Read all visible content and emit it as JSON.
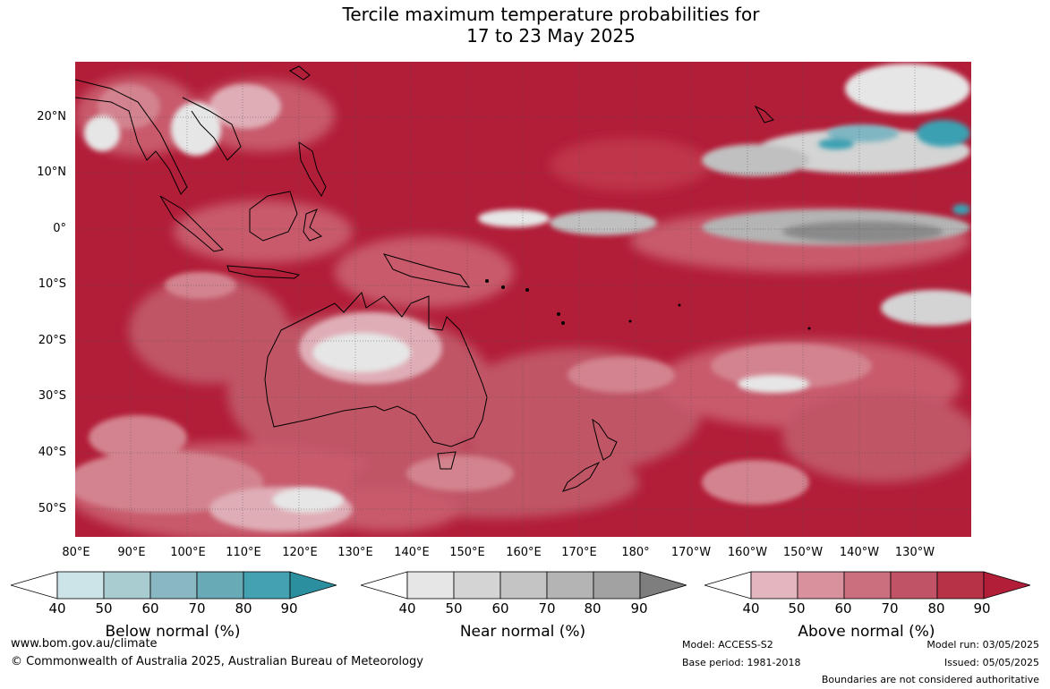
{
  "title": {
    "line1": "Tercile maximum temperature probabilities for",
    "line2": "17 to 23 May 2025"
  },
  "axes": {
    "lat_labels": [
      "20°N",
      "10°N",
      "0°",
      "10°S",
      "20°S",
      "30°S",
      "40°S",
      "50°S"
    ],
    "lon_labels": [
      "80°E",
      "90°E",
      "100°E",
      "110°E",
      "120°E",
      "130°E",
      "140°E",
      "150°E",
      "160°E",
      "170°E",
      "180°",
      "170°W",
      "160°W",
      "150°W",
      "140°W",
      "130°W"
    ]
  },
  "legends": {
    "below": {
      "title": "Below normal (%)",
      "ticks": [
        "40",
        "50",
        "60",
        "70",
        "80",
        "90"
      ],
      "colors": [
        "#ffffff",
        "#cce3e8",
        "#a9ccd1",
        "#89b7c2",
        "#68aab6",
        "#44a1b2",
        "#2c8fa0"
      ]
    },
    "near": {
      "title": "Near normal (%)",
      "ticks": [
        "40",
        "50",
        "60",
        "70",
        "80",
        "90"
      ],
      "colors": [
        "#ffffff",
        "#e6e6e6",
        "#d4d4d4",
        "#c4c4c4",
        "#b4b4b4",
        "#a2a2a2",
        "#7e7e7e"
      ]
    },
    "above": {
      "title": "Above normal (%)",
      "ticks": [
        "40",
        "50",
        "60",
        "70",
        "80",
        "90"
      ],
      "colors": [
        "#ffffff",
        "#e3b5bf",
        "#d9919e",
        "#cb6f7f",
        "#c05466",
        "#b73147",
        "#b21d38"
      ]
    }
  },
  "footer": {
    "website": "www.bom.gov.au/climate",
    "copyright": "© Commonwealth of Australia 2025, Australian Bureau of Meteorology",
    "model": "Model: ACCESS-S2",
    "base_period": "Base period: 1981-2018",
    "model_run": "Model run: 03/05/2025",
    "issued": "Issued: 05/05/2025",
    "disclaimer": "Boundaries are not considered authoritative"
  },
  "map": {
    "dominant_category": "Above normal",
    "colors": {
      "above90": "#b21d38",
      "above80": "#bf3549",
      "above70": "#c85a6c",
      "above60": "#d3838f",
      "above50": "#dfadb6",
      "near50": "#d4d4d4",
      "near60": "#c0c0c0",
      "near80": "#8a8a8a",
      "below60": "#7fb6c2",
      "below80": "#3aa0b2"
    }
  }
}
